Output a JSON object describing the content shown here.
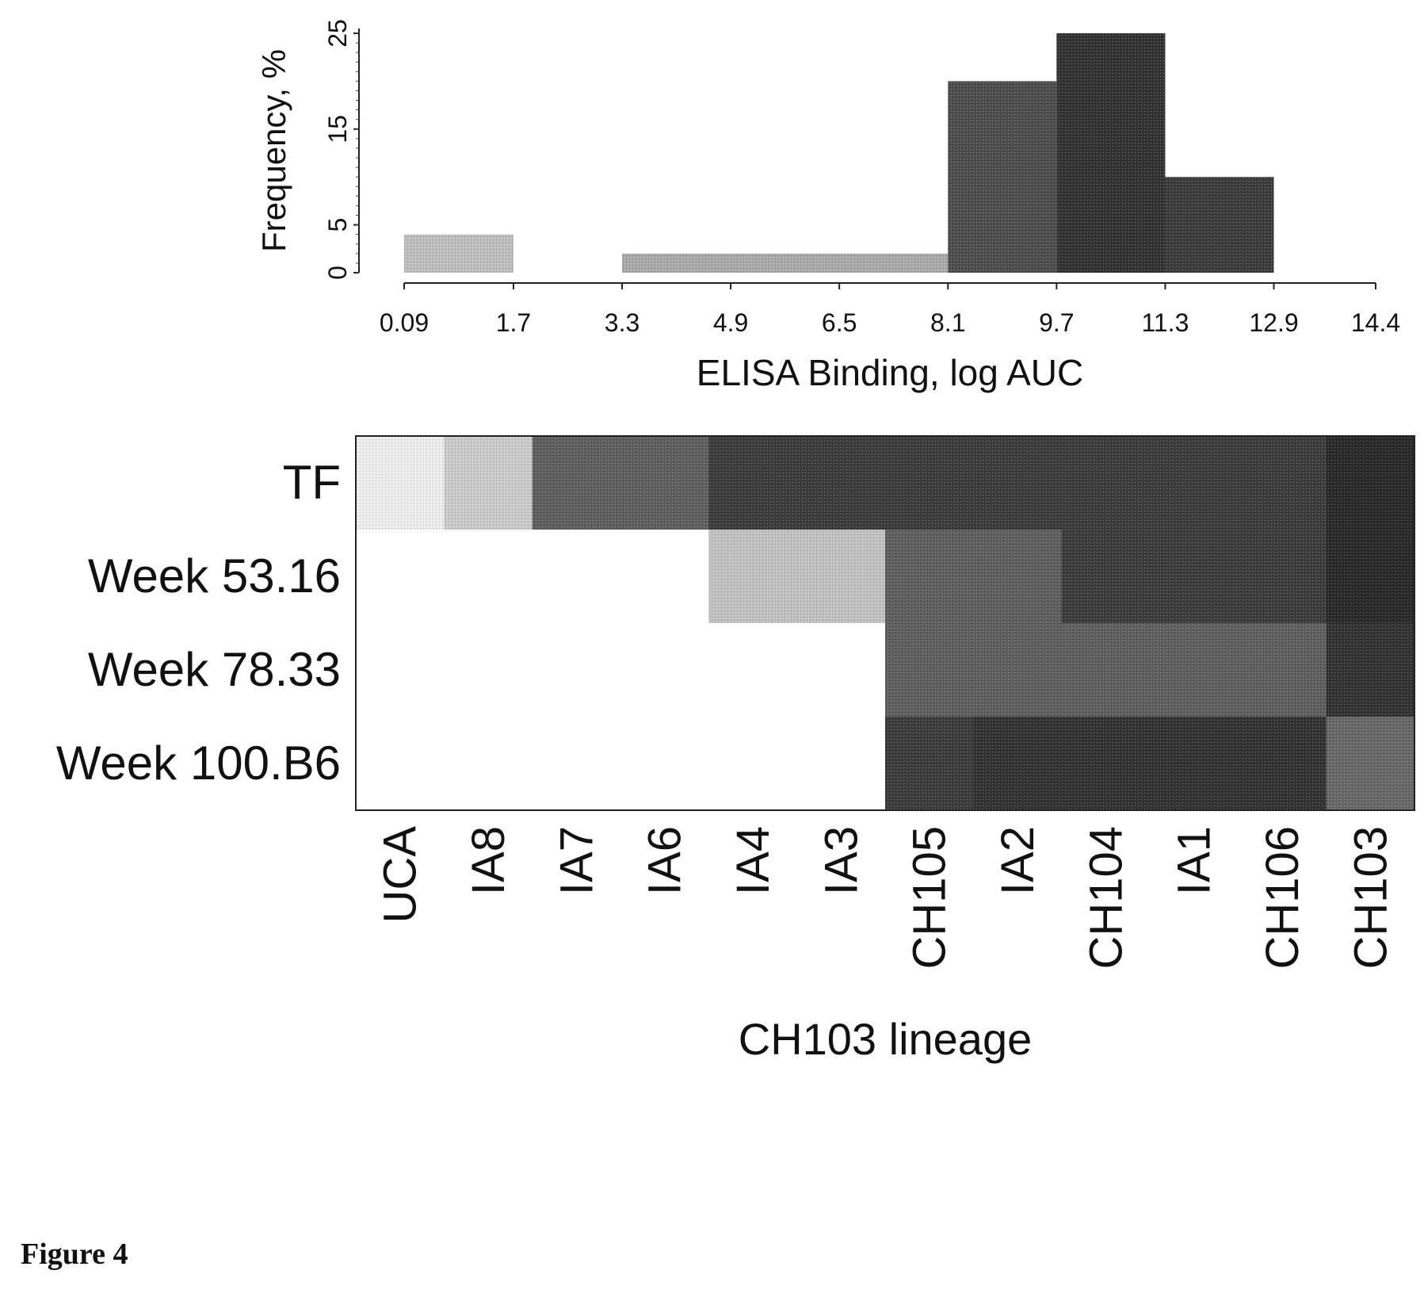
{
  "figure_label": "Figure 4",
  "chart_data": [
    {
      "type": "bar",
      "subtype": "histogram",
      "xlabel": "ELISA Binding, log AUC",
      "ylabel": "Frequency, %",
      "x_ticks": [
        "0.09",
        "1.7",
        "3.3",
        "4.9",
        "6.5",
        "8.1",
        "9.7",
        "11.3",
        "12.9",
        "14.4"
      ],
      "y_ticks": [
        "0",
        "5",
        "15",
        "25"
      ],
      "ylim": [
        0,
        25
      ],
      "bins": [
        {
          "from": 0.09,
          "to": 1.7,
          "value": 4,
          "shade": "#bdbdbd"
        },
        {
          "from": 1.7,
          "to": 3.3,
          "value": 0,
          "shade": "#ffffff"
        },
        {
          "from": 3.3,
          "to": 8.1,
          "value": 2,
          "shade": "#a9a9a9"
        },
        {
          "from": 8.1,
          "to": 9.7,
          "value": 20,
          "shade": "#4d4d4d"
        },
        {
          "from": 9.7,
          "to": 11.3,
          "value": 25,
          "shade": "#333333"
        },
        {
          "from": 11.3,
          "to": 12.9,
          "value": 10,
          "shade": "#3c3c3c"
        }
      ]
    },
    {
      "type": "heatmap",
      "xlabel": "CH103 lineage",
      "columns": [
        "UCA",
        "IA8",
        "IA7",
        "IA6",
        "IA4",
        "IA3",
        "CH105",
        "IA2",
        "CH104",
        "IA1",
        "CH106",
        "CH103"
      ],
      "rows": [
        "TF",
        "Week 53.16",
        "Week 78.33",
        "Week 100.B6"
      ],
      "values": [
        [
          1.0,
          3.0,
          9.0,
          9.0,
          11.0,
          11.0,
          11.0,
          11.0,
          11.0,
          11.0,
          11.0,
          12.0
        ],
        [
          0,
          0,
          0,
          0,
          3.5,
          3.5,
          9.0,
          9.0,
          11.0,
          11.0,
          11.0,
          12.0
        ],
        [
          0,
          0,
          0,
          0,
          0,
          0,
          9.0,
          9.0,
          9.0,
          9.0,
          9.0,
          11.5
        ],
        [
          0,
          0,
          0,
          0,
          0,
          0,
          11.0,
          11.5,
          11.5,
          11.5,
          11.5,
          8.5
        ]
      ],
      "color_scale": {
        "min_value": 0,
        "max_value": 12,
        "low": "#ffffff",
        "high": "#2a2a2a"
      }
    }
  ]
}
